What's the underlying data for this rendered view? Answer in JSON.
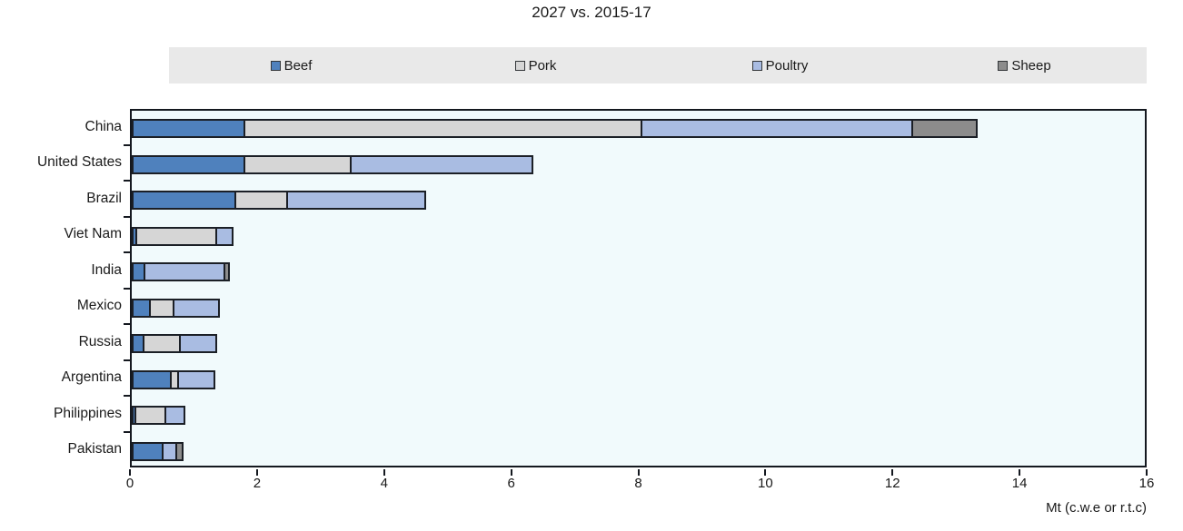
{
  "colors": {
    "beef": "#4f81bd",
    "pork": "#d6d6d6",
    "poultry": "#a9bce2",
    "sheep": "#8c8c8c",
    "plot_background": "#f1fafc",
    "frame": "#14181f",
    "legend_background": "#e9e9e9"
  },
  "chart_data": {
    "type": "bar",
    "orientation": "horizontal",
    "stacked": true,
    "title": "2027 vs. 2015-17",
    "xlabel": "Mt (c.w.e or r.t.c)",
    "xlim": [
      0,
      16
    ],
    "xticks": [
      0,
      2,
      4,
      6,
      8,
      10,
      12,
      14,
      16
    ],
    "grid": false,
    "legend_position": "top",
    "legend_entries": [
      "Beef",
      "Pork",
      "Poultry",
      "Sheep"
    ],
    "categories": [
      "China",
      "United States",
      "Brazil",
      "Viet Nam",
      "India",
      "Mexico",
      "Russia",
      "Argentina",
      "Philippines",
      "Pakistan"
    ],
    "series": [
      {
        "name": "Beef",
        "color": "#4f81bd",
        "values": [
          1.8,
          1.8,
          1.65,
          0.08,
          0.21,
          0.3,
          0.2,
          0.63,
          0.07,
          0.5
        ]
      },
      {
        "name": "Pork",
        "color": "#d6d6d6",
        "values": [
          6.3,
          1.7,
          0.85,
          1.3,
          0,
          0.4,
          0.6,
          0.15,
          0.5,
          0
        ]
      },
      {
        "name": "Poultry",
        "color": "#a9bce2",
        "values": [
          4.3,
          2.9,
          2.2,
          0.28,
          1.29,
          0.75,
          0.6,
          0.6,
          0.33,
          0.24
        ]
      },
      {
        "name": "Sheep",
        "color": "#8c8c8c",
        "values": [
          1.05,
          0,
          0,
          0,
          0.11,
          0,
          0,
          0,
          0,
          0.13
        ]
      }
    ],
    "totals": [
      13.5,
      6.4,
      4.7,
      1.66,
      1.61,
      1.45,
      1.4,
      1.38,
      0.9,
      0.87
    ]
  }
}
